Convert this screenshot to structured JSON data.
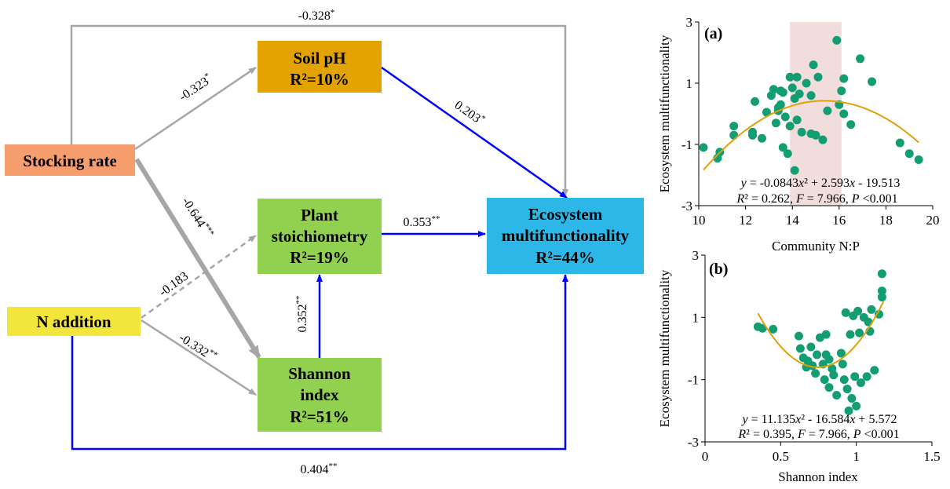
{
  "colors": {
    "gray_arrow": "#a6a6a6",
    "blue_arrow": "#0000ff",
    "soil_ph_box": "#e2a300",
    "stocking_box": "#f79e6f",
    "n_addition_box": "#f2e53c",
    "green_box": "#92d050",
    "ecosystem_box": "#2db7e8",
    "point": "#139d73",
    "fit_line": "#e0a00a",
    "shade": "#f2dddd"
  },
  "boxes": {
    "stocking_rate": "Stocking rate",
    "n_addition": "N addition",
    "soil_ph": {
      "line1": "Soil pH",
      "line2": "R²=10%"
    },
    "plant_stoich": {
      "line1": "Plant",
      "line2": "stoichiometry",
      "line3": "R²=19%"
    },
    "shannon": {
      "line1": "Shannon",
      "line2": "index",
      "line3": "R²=51%"
    },
    "ecosystem": {
      "line1": "Ecosystem",
      "line2": "multifunctionality",
      "line3": "R²=44%"
    }
  },
  "paths": {
    "stocking_to_ecosystem": {
      "value": "-0.328",
      "sig": "*"
    },
    "stocking_to_soilph": {
      "value": "-0.323",
      "sig": "*"
    },
    "soilph_to_ecosystem": {
      "value": "0.203",
      "sig": "*"
    },
    "stocking_to_shannon": {
      "value": "-0.644",
      "sig": "***"
    },
    "naddition_to_plant": {
      "value": "-0.183",
      "sig": ""
    },
    "naddition_to_shannon": {
      "value": "-0.332",
      "sig": "**"
    },
    "plant_to_ecosystem": {
      "value": "0.353",
      "sig": "**"
    },
    "shannon_to_plant": {
      "value": "0.352",
      "sig": "**"
    },
    "naddition_to_ecosystem": {
      "value": "0.404",
      "sig": "**"
    }
  },
  "chart_data": [
    {
      "type": "scatter",
      "panel_label": "(a)",
      "xlabel": "Community N:P",
      "ylabel": "Ecosystem multifunctionality",
      "xlim": [
        10,
        20
      ],
      "ylim": [
        -3,
        3
      ],
      "x_ticks": [
        "10",
        "12",
        "14",
        "16",
        "18",
        "20"
      ],
      "y_ticks": [
        "3",
        "1",
        "-1",
        "-3"
      ],
      "shaded_x_range": [
        13.9,
        16.1
      ],
      "fit": {
        "a": -0.0843,
        "b": 2.593,
        "c": -19.513,
        "x_range": [
          10.2,
          19.4
        ]
      },
      "equation": {
        "p1": "y",
        "p2": " = -0.0843",
        "p3": "x",
        "p4": "² + 2.593",
        "p5": "x",
        "p6": " - 19.513",
        "q1": "R",
        "q2": "² = 0.262, ",
        "q3": "F",
        "q4": " = 7.966, ",
        "q5": "P",
        "q6": " <0.001"
      },
      "points": [
        [
          10.2,
          -1.1
        ],
        [
          10.8,
          -1.45
        ],
        [
          10.9,
          -1.25
        ],
        [
          11.5,
          -0.4
        ],
        [
          11.5,
          -0.7
        ],
        [
          12.3,
          -0.7
        ],
        [
          12.3,
          -0.6
        ],
        [
          12.4,
          0.4
        ],
        [
          12.7,
          -0.8
        ],
        [
          12.9,
          0.05
        ],
        [
          13.1,
          0.6
        ],
        [
          13.2,
          0.8
        ],
        [
          13.3,
          -0.3
        ],
        [
          13.4,
          0.1
        ],
        [
          13.5,
          0.75
        ],
        [
          13.6,
          0.7
        ],
        [
          13.5,
          0.3
        ],
        [
          13.4,
          0.2
        ],
        [
          13.7,
          -0.1
        ],
        [
          13.8,
          -1.3
        ],
        [
          13.6,
          -1.1
        ],
        [
          13.9,
          1.2
        ],
        [
          14.0,
          0.85
        ],
        [
          13.9,
          -0.4
        ],
        [
          14.1,
          0.5
        ],
        [
          14.2,
          -0.2
        ],
        [
          14.1,
          -1.85
        ],
        [
          14.2,
          1.2
        ],
        [
          14.3,
          0.65
        ],
        [
          14.4,
          -0.6
        ],
        [
          14.6,
          1.0
        ],
        [
          14.8,
          -0.65
        ],
        [
          14.8,
          0.6
        ],
        [
          14.9,
          1.6
        ],
        [
          15.0,
          -0.7
        ],
        [
          15.1,
          1.2
        ],
        [
          15.3,
          -0.85
        ],
        [
          15.5,
          0.1
        ],
        [
          15.9,
          2.4
        ],
        [
          16.0,
          0.3
        ],
        [
          16.1,
          0.75
        ],
        [
          16.2,
          1.15
        ],
        [
          16.2,
          0.0
        ],
        [
          16.5,
          -0.35
        ],
        [
          16.9,
          1.8
        ],
        [
          17.4,
          1.05
        ],
        [
          18.6,
          -0.95
        ],
        [
          19.0,
          -1.3
        ],
        [
          19.4,
          -1.5
        ]
      ]
    },
    {
      "type": "scatter",
      "panel_label": "(b)",
      "xlabel": "Shannon index",
      "ylabel": "Ecosystem multifunctionality",
      "xlim": [
        0,
        1.5
      ],
      "ylim": [
        -3,
        3
      ],
      "x_ticks": [
        "0",
        "0.5",
        "1",
        "1.5"
      ],
      "y_ticks": [
        "3",
        "1",
        "-1",
        "-3"
      ],
      "fit": {
        "a": 11.135,
        "b": -16.584,
        "c": 5.572,
        "x_range": [
          0.35,
          1.18
        ]
      },
      "equation": {
        "p1": "y",
        "p2": " = 11.135",
        "p3": "x",
        "p4": "² - 16.584",
        "p5": "x",
        "p6": " + 5.572",
        "q1": "R",
        "q2": "² = 0.395, ",
        "q3": "F",
        "q4": " = 7.966, ",
        "q5": "P",
        "q6": " <0.001"
      },
      "points": [
        [
          0.35,
          0.7
        ],
        [
          0.38,
          0.65
        ],
        [
          0.45,
          0.62
        ],
        [
          0.62,
          0.4
        ],
        [
          0.63,
          0.0
        ],
        [
          0.65,
          -0.3
        ],
        [
          0.67,
          -0.6
        ],
        [
          0.68,
          -0.4
        ],
        [
          0.7,
          0.05
        ],
        [
          0.71,
          -0.55
        ],
        [
          0.73,
          -0.8
        ],
        [
          0.74,
          -0.2
        ],
        [
          0.76,
          0.35
        ],
        [
          0.78,
          -0.5
        ],
        [
          0.79,
          -1.0
        ],
        [
          0.8,
          0.45
        ],
        [
          0.8,
          -0.2
        ],
        [
          0.82,
          -1.25
        ],
        [
          0.82,
          -0.35
        ],
        [
          0.84,
          -0.65
        ],
        [
          0.85,
          -0.85
        ],
        [
          0.87,
          -1.5
        ],
        [
          0.9,
          -0.15
        ],
        [
          0.91,
          -0.5
        ],
        [
          0.92,
          -1.0
        ],
        [
          0.93,
          1.15
        ],
        [
          0.94,
          -1.3
        ],
        [
          0.95,
          -2.0
        ],
        [
          0.96,
          0.45
        ],
        [
          0.97,
          -1.6
        ],
        [
          0.98,
          1.05
        ],
        [
          0.99,
          -0.9
        ],
        [
          1.0,
          -1.85
        ],
        [
          1.01,
          1.2
        ],
        [
          1.02,
          0.5
        ],
        [
          1.03,
          -1.1
        ],
        [
          1.05,
          1.0
        ],
        [
          1.07,
          -0.9
        ],
        [
          1.08,
          0.85
        ],
        [
          1.09,
          0.55
        ],
        [
          1.1,
          1.25
        ],
        [
          1.12,
          -0.7
        ],
        [
          1.15,
          1.1
        ],
        [
          1.17,
          1.65
        ],
        [
          1.17,
          1.85
        ],
        [
          1.17,
          2.4
        ]
      ]
    }
  ]
}
